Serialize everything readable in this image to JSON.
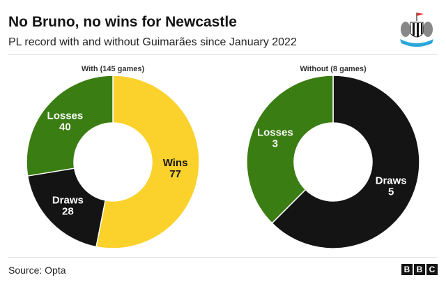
{
  "title": "No Bruno, no wins for Newcastle",
  "subtitle": "PL record with and without Guimarães since January 2022",
  "source": "Source: Opta",
  "bbc_logo": [
    "B",
    "B",
    "C"
  ],
  "crest_logo": "Newcastle United",
  "chart_data": [
    {
      "type": "pie",
      "donut": true,
      "title": "With (145 games)",
      "categories": [
        "Wins",
        "Draws",
        "Losses"
      ],
      "values": [
        77,
        28,
        40
      ],
      "colors": [
        "#fbd12c",
        "#141414",
        "#3a7d12"
      ]
    },
    {
      "type": "pie",
      "donut": true,
      "title": "Without (8 games)",
      "categories": [
        "Wins",
        "Draws",
        "Losses"
      ],
      "values": [
        0,
        5,
        3
      ],
      "colors": [
        "#fbd12c",
        "#141414",
        "#3a7d12"
      ]
    }
  ]
}
